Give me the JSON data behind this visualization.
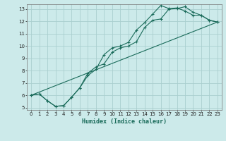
{
  "xlabel": "Humidex (Indice chaleur)",
  "bg_color": "#cceaea",
  "line_color": "#1a6b5a",
  "grid_color": "#aacfcf",
  "xlim": [
    -0.5,
    23.5
  ],
  "ylim": [
    4.8,
    13.4
  ],
  "xticks": [
    0,
    1,
    2,
    3,
    4,
    5,
    6,
    7,
    8,
    9,
    10,
    11,
    12,
    13,
    14,
    15,
    16,
    17,
    18,
    19,
    20,
    21,
    22,
    23
  ],
  "yticks": [
    5,
    6,
    7,
    8,
    9,
    10,
    11,
    12,
    13
  ],
  "line1_x": [
    0,
    1,
    2,
    3,
    4,
    5,
    6,
    7,
    8,
    9,
    10,
    11,
    12,
    13,
    14,
    15,
    16,
    17,
    18,
    19,
    20,
    21,
    22,
    23
  ],
  "line1_y": [
    6.0,
    6.1,
    5.55,
    5.1,
    5.15,
    5.85,
    6.6,
    7.8,
    8.3,
    8.55,
    9.5,
    9.85,
    10.0,
    10.35,
    11.5,
    12.1,
    12.2,
    13.0,
    13.05,
    13.2,
    12.75,
    12.5,
    12.1,
    11.95
  ],
  "line2_x": [
    0,
    1,
    2,
    3,
    4,
    5,
    6,
    7,
    8,
    9,
    10,
    11,
    12,
    13,
    14,
    15,
    16,
    17,
    18,
    19,
    20,
    21,
    22,
    23
  ],
  "line2_y": [
    6.0,
    6.1,
    5.55,
    5.1,
    5.15,
    5.85,
    6.6,
    7.6,
    8.1,
    9.3,
    9.85,
    10.0,
    10.3,
    11.3,
    11.9,
    12.6,
    13.3,
    13.05,
    13.1,
    12.85,
    12.5,
    12.5,
    12.1,
    11.95
  ],
  "line3_x": [
    0,
    23
  ],
  "line3_y": [
    6.0,
    11.95
  ]
}
